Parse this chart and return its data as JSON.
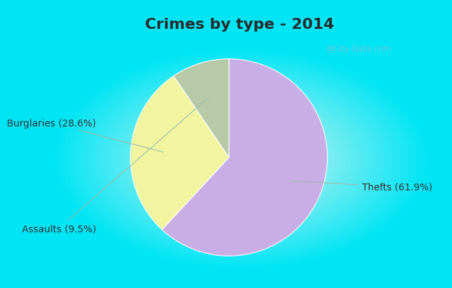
{
  "title": "Crimes by type - 2014",
  "slices": [
    {
      "label": "Thefts (61.9%)",
      "value": 61.9,
      "color": "#c9aee5"
    },
    {
      "label": "Burglaries (28.6%)",
      "value": 28.6,
      "color": "#f2f5a0"
    },
    {
      "label": "Assaults (9.5%)",
      "value": 9.5,
      "color": "#b8c9a8"
    }
  ],
  "background_top": "#00e5f5",
  "background_main_center": "#e8f5ee",
  "title_fontsize": 16,
  "label_fontsize": 10,
  "watermark": "@City-Data.com",
  "title_color": "#2a2a2a",
  "label_color": "#333333"
}
